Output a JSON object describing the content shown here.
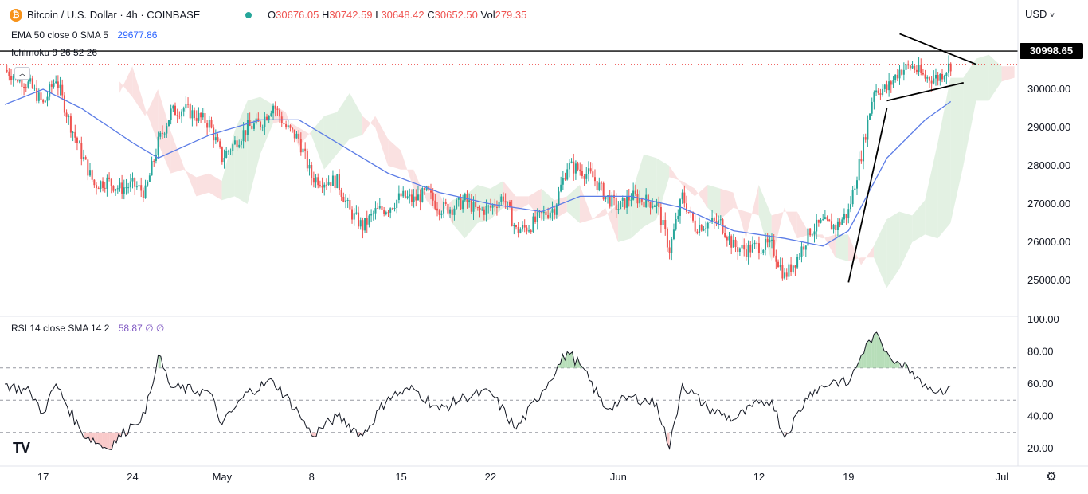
{
  "header": {
    "symbol": "Bitcoin / U.S. Dollar · 4h · COINBASE",
    "open": "30676.05",
    "high": "30742.59",
    "low": "30648.42",
    "close": "30652.50",
    "volume": "279.35",
    "currency": "USD",
    "currency_caret": "˅"
  },
  "indicators": {
    "ema_label": "EMA 50 close 0 SMA 5",
    "ema_value": "29677.86",
    "ichimoku_label": "Ichimoku 9 26 52 26",
    "rsi_label": "RSI 14 close SMA 14 2",
    "rsi_value": "58.87 ∅ ∅"
  },
  "current_price_label": "30998.65",
  "colors": {
    "up": "#26a69a",
    "down": "#ef5350",
    "ema": "#5b7ce6",
    "cloud_bull": "#d9ecd9",
    "cloud_bear": "#f8d7d7",
    "rsi_line": "#131722"
  },
  "chart_data": [
    {
      "type": "candlestick",
      "title": "Bitcoin / U.S. Dollar · 4h · COINBASE",
      "y_axis_ticks": [
        "30000.00",
        "29000.00",
        "28000.00",
        "27000.00",
        "26000.00",
        "25000.00"
      ],
      "x_axis_ticks": [
        "17",
        "24",
        "May",
        "8",
        "15",
        "22",
        "Jun",
        "12",
        "19",
        "Jul"
      ],
      "close_path": [
        {
          "date": "Apr 14",
          "close": 30500
        },
        {
          "date": "Apr 16",
          "close": 30100
        },
        {
          "date": "Apr 17",
          "close": 29600
        },
        {
          "date": "Apr 18",
          "close": 30300
        },
        {
          "date": "Apr 19",
          "close": 29200
        },
        {
          "date": "Apr 20",
          "close": 28300
        },
        {
          "date": "Apr 21",
          "close": 27500
        },
        {
          "date": "Apr 22",
          "close": 27600
        },
        {
          "date": "Apr 23",
          "close": 27400
        },
        {
          "date": "Apr 24",
          "close": 27500
        },
        {
          "date": "Apr 25",
          "close": 27300
        },
        {
          "date": "Apr 26",
          "close": 28600
        },
        {
          "date": "Apr 27",
          "close": 29400
        },
        {
          "date": "Apr 28",
          "close": 29500
        },
        {
          "date": "Apr 29",
          "close": 29300
        },
        {
          "date": "Apr 30",
          "close": 29100
        },
        {
          "date": "May 1",
          "close": 28200
        },
        {
          "date": "May 2",
          "close": 28600
        },
        {
          "date": "May 3",
          "close": 29000
        },
        {
          "date": "May 4",
          "close": 29100
        },
        {
          "date": "May 5",
          "close": 29600
        },
        {
          "date": "May 6",
          "close": 29000
        },
        {
          "date": "May 7",
          "close": 28700
        },
        {
          "date": "May 8",
          "close": 27700
        },
        {
          "date": "May 9",
          "close": 27600
        },
        {
          "date": "May 10",
          "close": 27600
        },
        {
          "date": "May 11",
          "close": 26800
        },
        {
          "date": "May 12",
          "close": 26400
        },
        {
          "date": "May 13",
          "close": 26800
        },
        {
          "date": "May 14",
          "close": 26900
        },
        {
          "date": "May 15",
          "close": 27200
        },
        {
          "date": "May 16",
          "close": 27100
        },
        {
          "date": "May 17",
          "close": 27300
        },
        {
          "date": "May 18",
          "close": 26900
        },
        {
          "date": "May 19",
          "close": 26900
        },
        {
          "date": "May 20",
          "close": 27100
        },
        {
          "date": "May 21",
          "close": 26800
        },
        {
          "date": "May 22",
          "close": 26900
        },
        {
          "date": "May 23",
          "close": 27200
        },
        {
          "date": "May 24",
          "close": 26300
        },
        {
          "date": "May 25",
          "close": 26400
        },
        {
          "date": "May 26",
          "close": 26700
        },
        {
          "date": "May 27",
          "close": 26900
        },
        {
          "date": "May 28",
          "close": 28000
        },
        {
          "date": "May 29",
          "close": 27900
        },
        {
          "date": "May 30",
          "close": 27700
        },
        {
          "date": "May 31",
          "close": 27200
        },
        {
          "date": "Jun 1",
          "close": 26900
        },
        {
          "date": "Jun 2",
          "close": 27200
        },
        {
          "date": "Jun 3",
          "close": 27100
        },
        {
          "date": "Jun 4",
          "close": 27000
        },
        {
          "date": "Jun 5",
          "close": 25800
        },
        {
          "date": "Jun 6",
          "close": 27200
        },
        {
          "date": "Jun 7",
          "close": 26400
        },
        {
          "date": "Jun 8",
          "close": 26500
        },
        {
          "date": "Jun 9",
          "close": 26500
        },
        {
          "date": "Jun 10",
          "close": 25900
        },
        {
          "date": "Jun 11",
          "close": 25800
        },
        {
          "date": "Jun 12",
          "close": 25900
        },
        {
          "date": "Jun 13",
          "close": 25900
        },
        {
          "date": "Jun 14",
          "close": 25100
        },
        {
          "date": "Jun 15",
          "close": 25600
        },
        {
          "date": "Jun 16",
          "close": 26300
        },
        {
          "date": "Jun 17",
          "close": 26500
        },
        {
          "date": "Jun 18",
          "close": 26400
        },
        {
          "date": "Jun 19",
          "close": 26800
        },
        {
          "date": "Jun 20",
          "close": 28300
        },
        {
          "date": "Jun 21",
          "close": 30000
        },
        {
          "date": "Jun 22",
          "close": 30000
        },
        {
          "date": "Jun 23",
          "close": 30500
        },
        {
          "date": "Jun 24",
          "close": 30600
        },
        {
          "date": "Jun 25",
          "close": 30300
        },
        {
          "date": "Jun 26",
          "close": 30300
        },
        {
          "date": "Jun 27",
          "close": 30650
        }
      ],
      "ema50_path": [
        {
          "date": "Apr 14",
          "value": 29600
        },
        {
          "date": "Apr 17",
          "value": 30000
        },
        {
          "date": "Apr 20",
          "value": 29500
        },
        {
          "date": "Apr 24",
          "value": 28600
        },
        {
          "date": "Apr 26",
          "value": 28200
        },
        {
          "date": "Apr 30",
          "value": 28800
        },
        {
          "date": "May 4",
          "value": 29200
        },
        {
          "date": "May 7",
          "value": 29200
        },
        {
          "date": "May 10",
          "value": 28600
        },
        {
          "date": "May 14",
          "value": 27800
        },
        {
          "date": "May 18",
          "value": 27300
        },
        {
          "date": "May 22",
          "value": 27000
        },
        {
          "date": "May 26",
          "value": 26800
        },
        {
          "date": "May 29",
          "value": 27200
        },
        {
          "date": "Jun 2",
          "value": 27200
        },
        {
          "date": "Jun 6",
          "value": 26900
        },
        {
          "date": "Jun 10",
          "value": 26300
        },
        {
          "date": "Jun 14",
          "value": 26100
        },
        {
          "date": "Jun 17",
          "value": 25900
        },
        {
          "date": "Jun 19",
          "value": 26300
        },
        {
          "date": "Jun 22",
          "value": 28200
        },
        {
          "date": "Jun 25",
          "value": 29200
        },
        {
          "date": "Jun 27",
          "value": 29677.86
        }
      ],
      "resistance_level": 30998.65,
      "drawn_lines": [
        {
          "name": "triangle-upper",
          "from": {
            "date": "Jun 23",
            "price": 31450
          },
          "to": {
            "date": "Jun 29",
            "price": 30650
          }
        },
        {
          "name": "triangle-lower",
          "from": {
            "date": "Jun 22",
            "price": 29700
          },
          "to": {
            "date": "Jun 28",
            "price": 30170
          }
        },
        {
          "name": "trend-up",
          "from": {
            "date": "Jun 19",
            "price": 24950
          },
          "to": {
            "date": "Jun 22",
            "price": 29500
          }
        }
      ]
    },
    {
      "type": "line",
      "title": "RSI 14 close SMA 14 2",
      "y_axis_ticks": [
        "100.00",
        "80.00",
        "60.00",
        "40.00",
        "20.00"
      ],
      "bands": [
        70,
        50,
        30
      ],
      "series": [
        {
          "values": [
            {
              "date": "Apr 14",
              "rsi": 60
            },
            {
              "date": "Apr 16",
              "rsi": 55
            },
            {
              "date": "Apr 17",
              "rsi": 42
            },
            {
              "date": "Apr 18",
              "rsi": 60
            },
            {
              "date": "Apr 20",
              "rsi": 30
            },
            {
              "date": "Apr 22",
              "rsi": 20
            },
            {
              "date": "Apr 24",
              "rsi": 35
            },
            {
              "date": "Apr 25",
              "rsi": 42
            },
            {
              "date": "Apr 26",
              "rsi": 78
            },
            {
              "date": "Apr 27",
              "rsi": 58
            },
            {
              "date": "Apr 30",
              "rsi": 55
            },
            {
              "date": "May 1",
              "rsi": 35
            },
            {
              "date": "May 3",
              "rsi": 55
            },
            {
              "date": "May 5",
              "rsi": 62
            },
            {
              "date": "May 7",
              "rsi": 42
            },
            {
              "date": "May 8",
              "rsi": 28
            },
            {
              "date": "May 10",
              "rsi": 40
            },
            {
              "date": "May 12",
              "rsi": 28
            },
            {
              "date": "May 14",
              "rsi": 52
            },
            {
              "date": "May 16",
              "rsi": 57
            },
            {
              "date": "May 18",
              "rsi": 44
            },
            {
              "date": "May 20",
              "rsi": 52
            },
            {
              "date": "May 22",
              "rsi": 55
            },
            {
              "date": "May 24",
              "rsi": 32
            },
            {
              "date": "May 26",
              "rsi": 55
            },
            {
              "date": "May 28",
              "rsi": 80
            },
            {
              "date": "May 29",
              "rsi": 72
            },
            {
              "date": "May 31",
              "rsi": 45
            },
            {
              "date": "Jun 2",
              "rsi": 52
            },
            {
              "date": "Jun 4",
              "rsi": 48
            },
            {
              "date": "Jun 5",
              "rsi": 20
            },
            {
              "date": "Jun 6",
              "rsi": 60
            },
            {
              "date": "Jun 8",
              "rsi": 45
            },
            {
              "date": "Jun 10",
              "rsi": 38
            },
            {
              "date": "Jun 12",
              "rsi": 48
            },
            {
              "date": "Jun 13",
              "rsi": 50
            },
            {
              "date": "Jun 14",
              "rsi": 27
            },
            {
              "date": "Jun 16",
              "rsi": 55
            },
            {
              "date": "Jun 18",
              "rsi": 62
            },
            {
              "date": "Jun 19",
              "rsi": 60
            },
            {
              "date": "Jun 20",
              "rsi": 78
            },
            {
              "date": "Jun 21",
              "rsi": 91
            },
            {
              "date": "Jun 22",
              "rsi": 80
            },
            {
              "date": "Jun 23",
              "rsi": 73
            },
            {
              "date": "Jun 24",
              "rsi": 68
            },
            {
              "date": "Jun 25",
              "rsi": 60
            },
            {
              "date": "Jun 26",
              "rsi": 55
            },
            {
              "date": "Jun 27",
              "rsi": 58.87
            }
          ]
        }
      ]
    }
  ]
}
